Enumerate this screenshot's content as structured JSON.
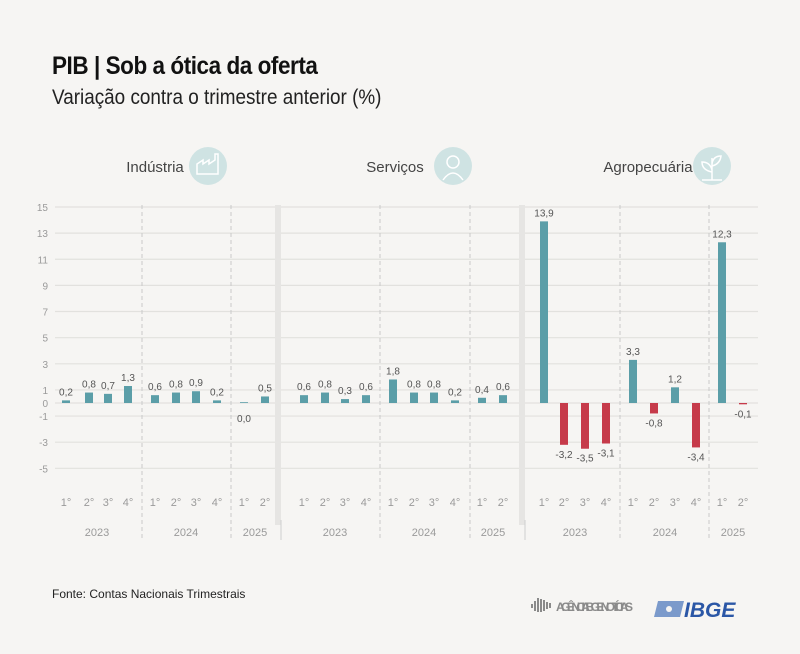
{
  "header": {
    "title": "PIB | Sob a ótica da oferta",
    "subtitle": "Variação contra o trimestre anterior (%)"
  },
  "footer": {
    "source": "Fonte: Contas Nacionais Trimestrais",
    "logos": [
      "AGÊNCIA IBGE NOTÍCIAS",
      "IBGE"
    ]
  },
  "colors": {
    "positive": "#5b9ea8",
    "negative": "#c63a4a",
    "icon_bg": "#cfe3e3"
  },
  "chart_data": {
    "type": "bar",
    "ylim": [
      -5,
      15
    ],
    "yticks": [
      15,
      13,
      11,
      9,
      7,
      5,
      3,
      1,
      0,
      -1,
      -3,
      -5
    ],
    "grid": true,
    "categories": [
      "1°",
      "2°",
      "3°",
      "4°",
      "1°",
      "2°",
      "3°",
      "4°",
      "1°",
      "2°"
    ],
    "years": [
      {
        "label": "2023",
        "quarters": 4
      },
      {
        "label": "2024",
        "quarters": 4
      },
      {
        "label": "2025",
        "quarters": 2
      }
    ],
    "series": [
      {
        "name": "Indústria",
        "icon": "factory-icon",
        "values": [
          0.2,
          0.8,
          0.7,
          1.3,
          0.6,
          0.8,
          0.9,
          0.2,
          0.0,
          0.5
        ],
        "labels": [
          "0,2",
          "0,8",
          "0,7",
          "1,3",
          "0,6",
          "0,8",
          "0,9",
          "0,2",
          "0,0",
          "0,5"
        ]
      },
      {
        "name": "Serviços",
        "icon": "person-headset-icon",
        "values": [
          0.6,
          0.8,
          0.3,
          0.6,
          1.8,
          0.8,
          0.8,
          0.2,
          0.4,
          0.6
        ],
        "labels": [
          "0,6",
          "0,8",
          "0,3",
          "0,6",
          "1,8",
          "0,8",
          "0,8",
          "0,2",
          "0,4",
          "0,6"
        ]
      },
      {
        "name": "Agropecuária",
        "icon": "plant-icon",
        "values": [
          13.9,
          -3.2,
          -3.5,
          -3.1,
          3.3,
          -0.8,
          1.2,
          -3.4,
          12.3,
          -0.1
        ],
        "labels": [
          "13,9",
          "-3,2",
          "-3,5",
          "-3,1",
          "3,3",
          "-0,8",
          "1,2",
          "-3,4",
          "12,3",
          "-0,1"
        ]
      }
    ]
  }
}
